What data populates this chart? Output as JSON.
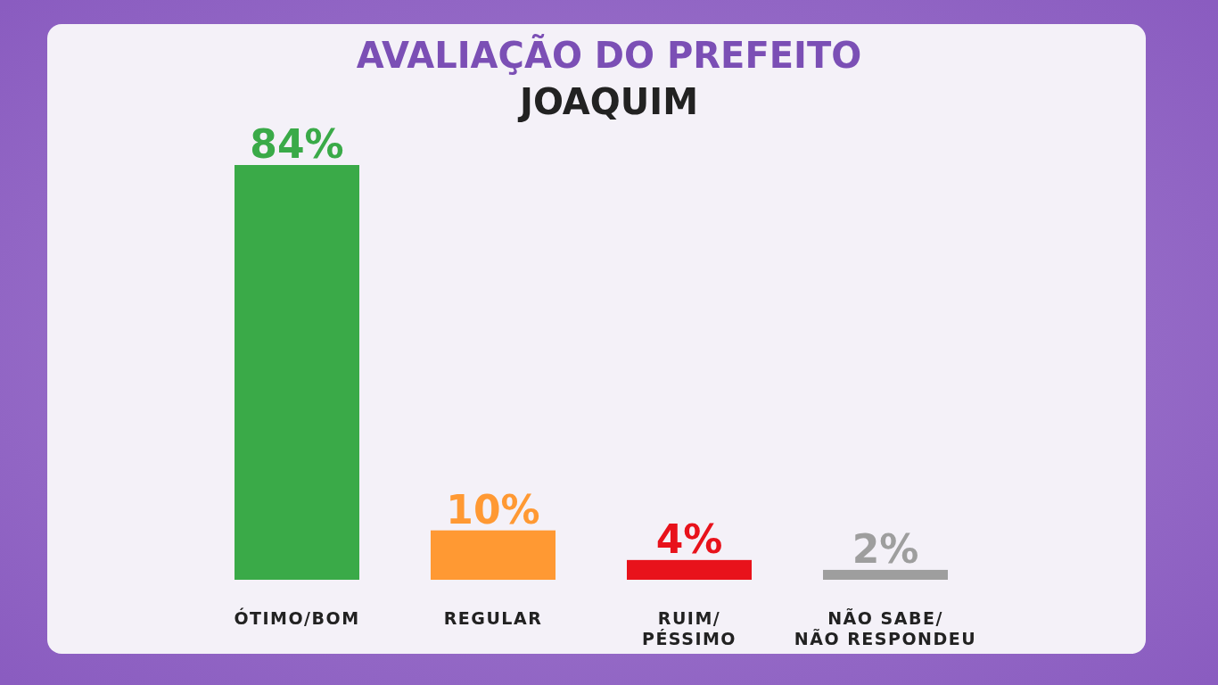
{
  "chart_data": {
    "type": "bar",
    "title": "AVALIAÇÃO DO PREFEITO",
    "subtitle": "JOAQUIM",
    "categories": [
      "ÓTIMO/BOM",
      "REGULAR",
      "RUIM/ PÉSSIMO",
      "NÃO SABE/ NÃO RESPONDEU"
    ],
    "values": [
      84,
      10,
      4,
      2
    ],
    "colors": [
      "#3aaa48",
      "#ff9933",
      "#e8121b",
      "#9e9e9e"
    ],
    "value_labels": [
      "84%",
      "10%",
      "4%",
      "2%"
    ]
  }
}
